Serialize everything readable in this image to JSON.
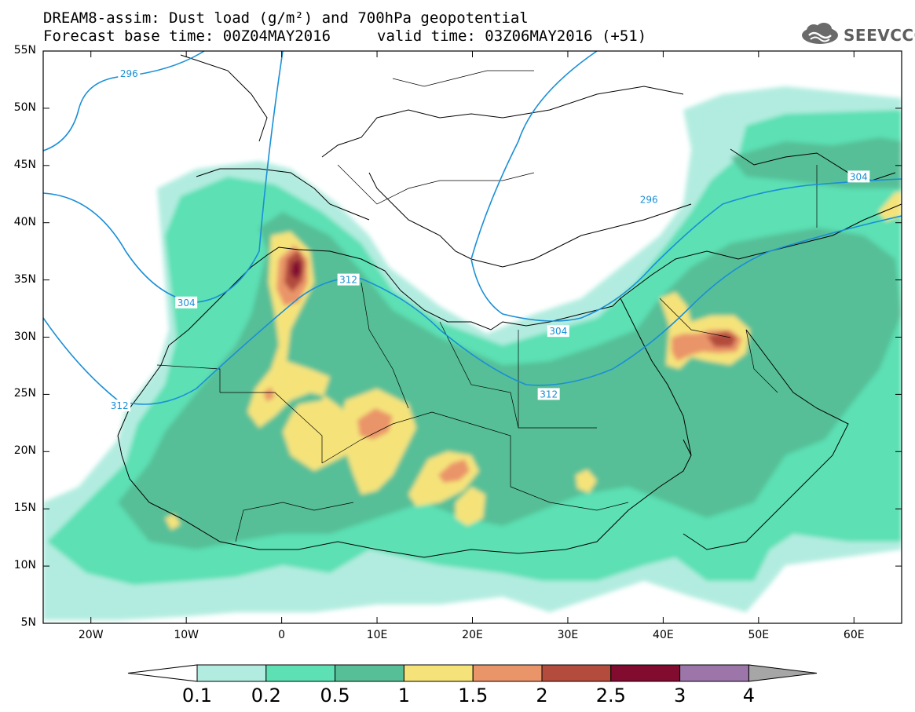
{
  "title": {
    "line1": "DREAM8-assim: Dust load (g/m²) and 700hPa geopotential",
    "line2_left": "Forecast base time: 00Z04MAY2016",
    "line2_right": "valid time: 03Z06MAY2016 (+51)"
  },
  "logo": {
    "text": "SEEVCCC",
    "icon": "cloud-icon"
  },
  "axes": {
    "lat_ticks": [
      "55N",
      "50N",
      "45N",
      "40N",
      "35N",
      "30N",
      "25N",
      "20N",
      "15N",
      "10N",
      "5N"
    ],
    "lon_ticks": [
      "20W",
      "10W",
      "0",
      "10E",
      "20E",
      "30E",
      "40E",
      "50E",
      "60E"
    ],
    "lon_range": [
      -25,
      65
    ],
    "lat_range": [
      5,
      55
    ]
  },
  "contour_labels": [
    {
      "label": "296",
      "lon": -16,
      "lat": 53
    },
    {
      "label": "296",
      "lon": 38.5,
      "lat": 42
    },
    {
      "label": "304",
      "lon": -10,
      "lat": 33
    },
    {
      "label": "304",
      "lon": 29,
      "lat": 30.5
    },
    {
      "label": "304",
      "lon": 60.5,
      "lat": 44
    },
    {
      "label": "312",
      "lon": 7,
      "lat": 35
    },
    {
      "label": "312",
      "lon": 28,
      "lat": 25
    },
    {
      "label": "312",
      "lon": -17,
      "lat": 24
    }
  ],
  "colorbar": {
    "labels": [
      "0.1",
      "0.2",
      "0.5",
      "1",
      "1.5",
      "2",
      "2.5",
      "3",
      "4"
    ],
    "colors": [
      "#ffffff",
      "#b2ece0",
      "#5ce0b4",
      "#56bf97",
      "#f5e37a",
      "#ea9469",
      "#b34c3c",
      "#820b30",
      "#9c76a9",
      "#a6a6a6"
    ]
  }
}
